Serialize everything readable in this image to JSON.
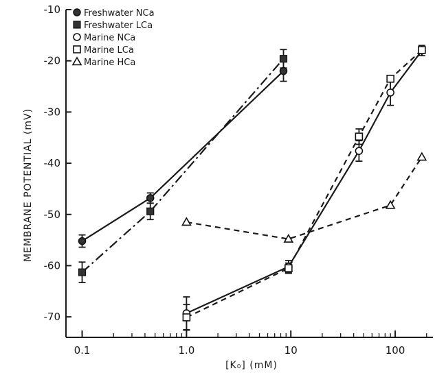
{
  "chart_data": {
    "type": "line",
    "xlabel": "[K₀] (mM)",
    "ylabel": "MEMBRANE POTENTIAL (mV)",
    "xscale": "log",
    "xlim": [
      0.07,
      230
    ],
    "ylim": [
      -74,
      -10
    ],
    "xticks": [
      0.1,
      1.0,
      10,
      100
    ],
    "xtick_labels": [
      "0.1",
      "1.0",
      "10",
      "100"
    ],
    "yticks": [
      -10,
      -20,
      -30,
      -40,
      -50,
      -60,
      -70
    ],
    "ytick_labels": [
      "-10",
      "-20",
      "-30",
      "-40",
      "-50",
      "-60",
      "-70"
    ],
    "grid": false,
    "legend_position": "top-left",
    "series": [
      {
        "name": "Freshwater NCa",
        "marker": "filled-circle",
        "line": "solid",
        "x": [
          0.1,
          0.45,
          8.5
        ],
        "y": [
          -55.2,
          -46.8,
          -22.0
        ],
        "err": [
          1.2,
          1.0,
          2.0
        ]
      },
      {
        "name": "Freshwater LCa",
        "marker": "filled-square",
        "line": "dash-dot",
        "x": [
          0.1,
          0.45,
          8.5
        ],
        "y": [
          -61.3,
          -49.4,
          -19.6
        ],
        "err": [
          2.0,
          1.6,
          1.8
        ]
      },
      {
        "name": "Marine NCa",
        "marker": "open-circle",
        "line": "solid",
        "x": [
          1.0,
          9.5,
          45,
          90,
          180
        ],
        "y": [
          -69.3,
          -60.2,
          -37.6,
          -26.2,
          -18.0
        ],
        "err": [
          3.2,
          1.2,
          2.0,
          2.5,
          1.0
        ]
      },
      {
        "name": "Marine LCa",
        "marker": "open-square",
        "line": "dashed",
        "x": [
          1.0,
          9.5,
          45,
          90,
          180
        ],
        "y": [
          -70.1,
          -60.5,
          -34.8,
          -23.5,
          -17.9
        ],
        "err": [
          2.5,
          1.0,
          1.5,
          0,
          0
        ]
      },
      {
        "name": "Marine HCa",
        "marker": "open-triangle",
        "line": "dashed",
        "x": [
          1.0,
          9.5,
          90,
          180
        ],
        "y": [
          -51.5,
          -54.8,
          -48.2,
          -38.8
        ],
        "err": [
          0,
          0,
          0,
          0
        ]
      }
    ],
    "legend": [
      {
        "symbol": "●",
        "text": "Freshwater  NCa"
      },
      {
        "symbol": "■",
        "text": "Freshwater  LCa"
      },
      {
        "symbol": "○",
        "text": "Marine  NCa"
      },
      {
        "symbol": "□",
        "text": "Marine  LCa"
      },
      {
        "symbol": "△",
        "text": "Marine  HCa"
      }
    ]
  }
}
